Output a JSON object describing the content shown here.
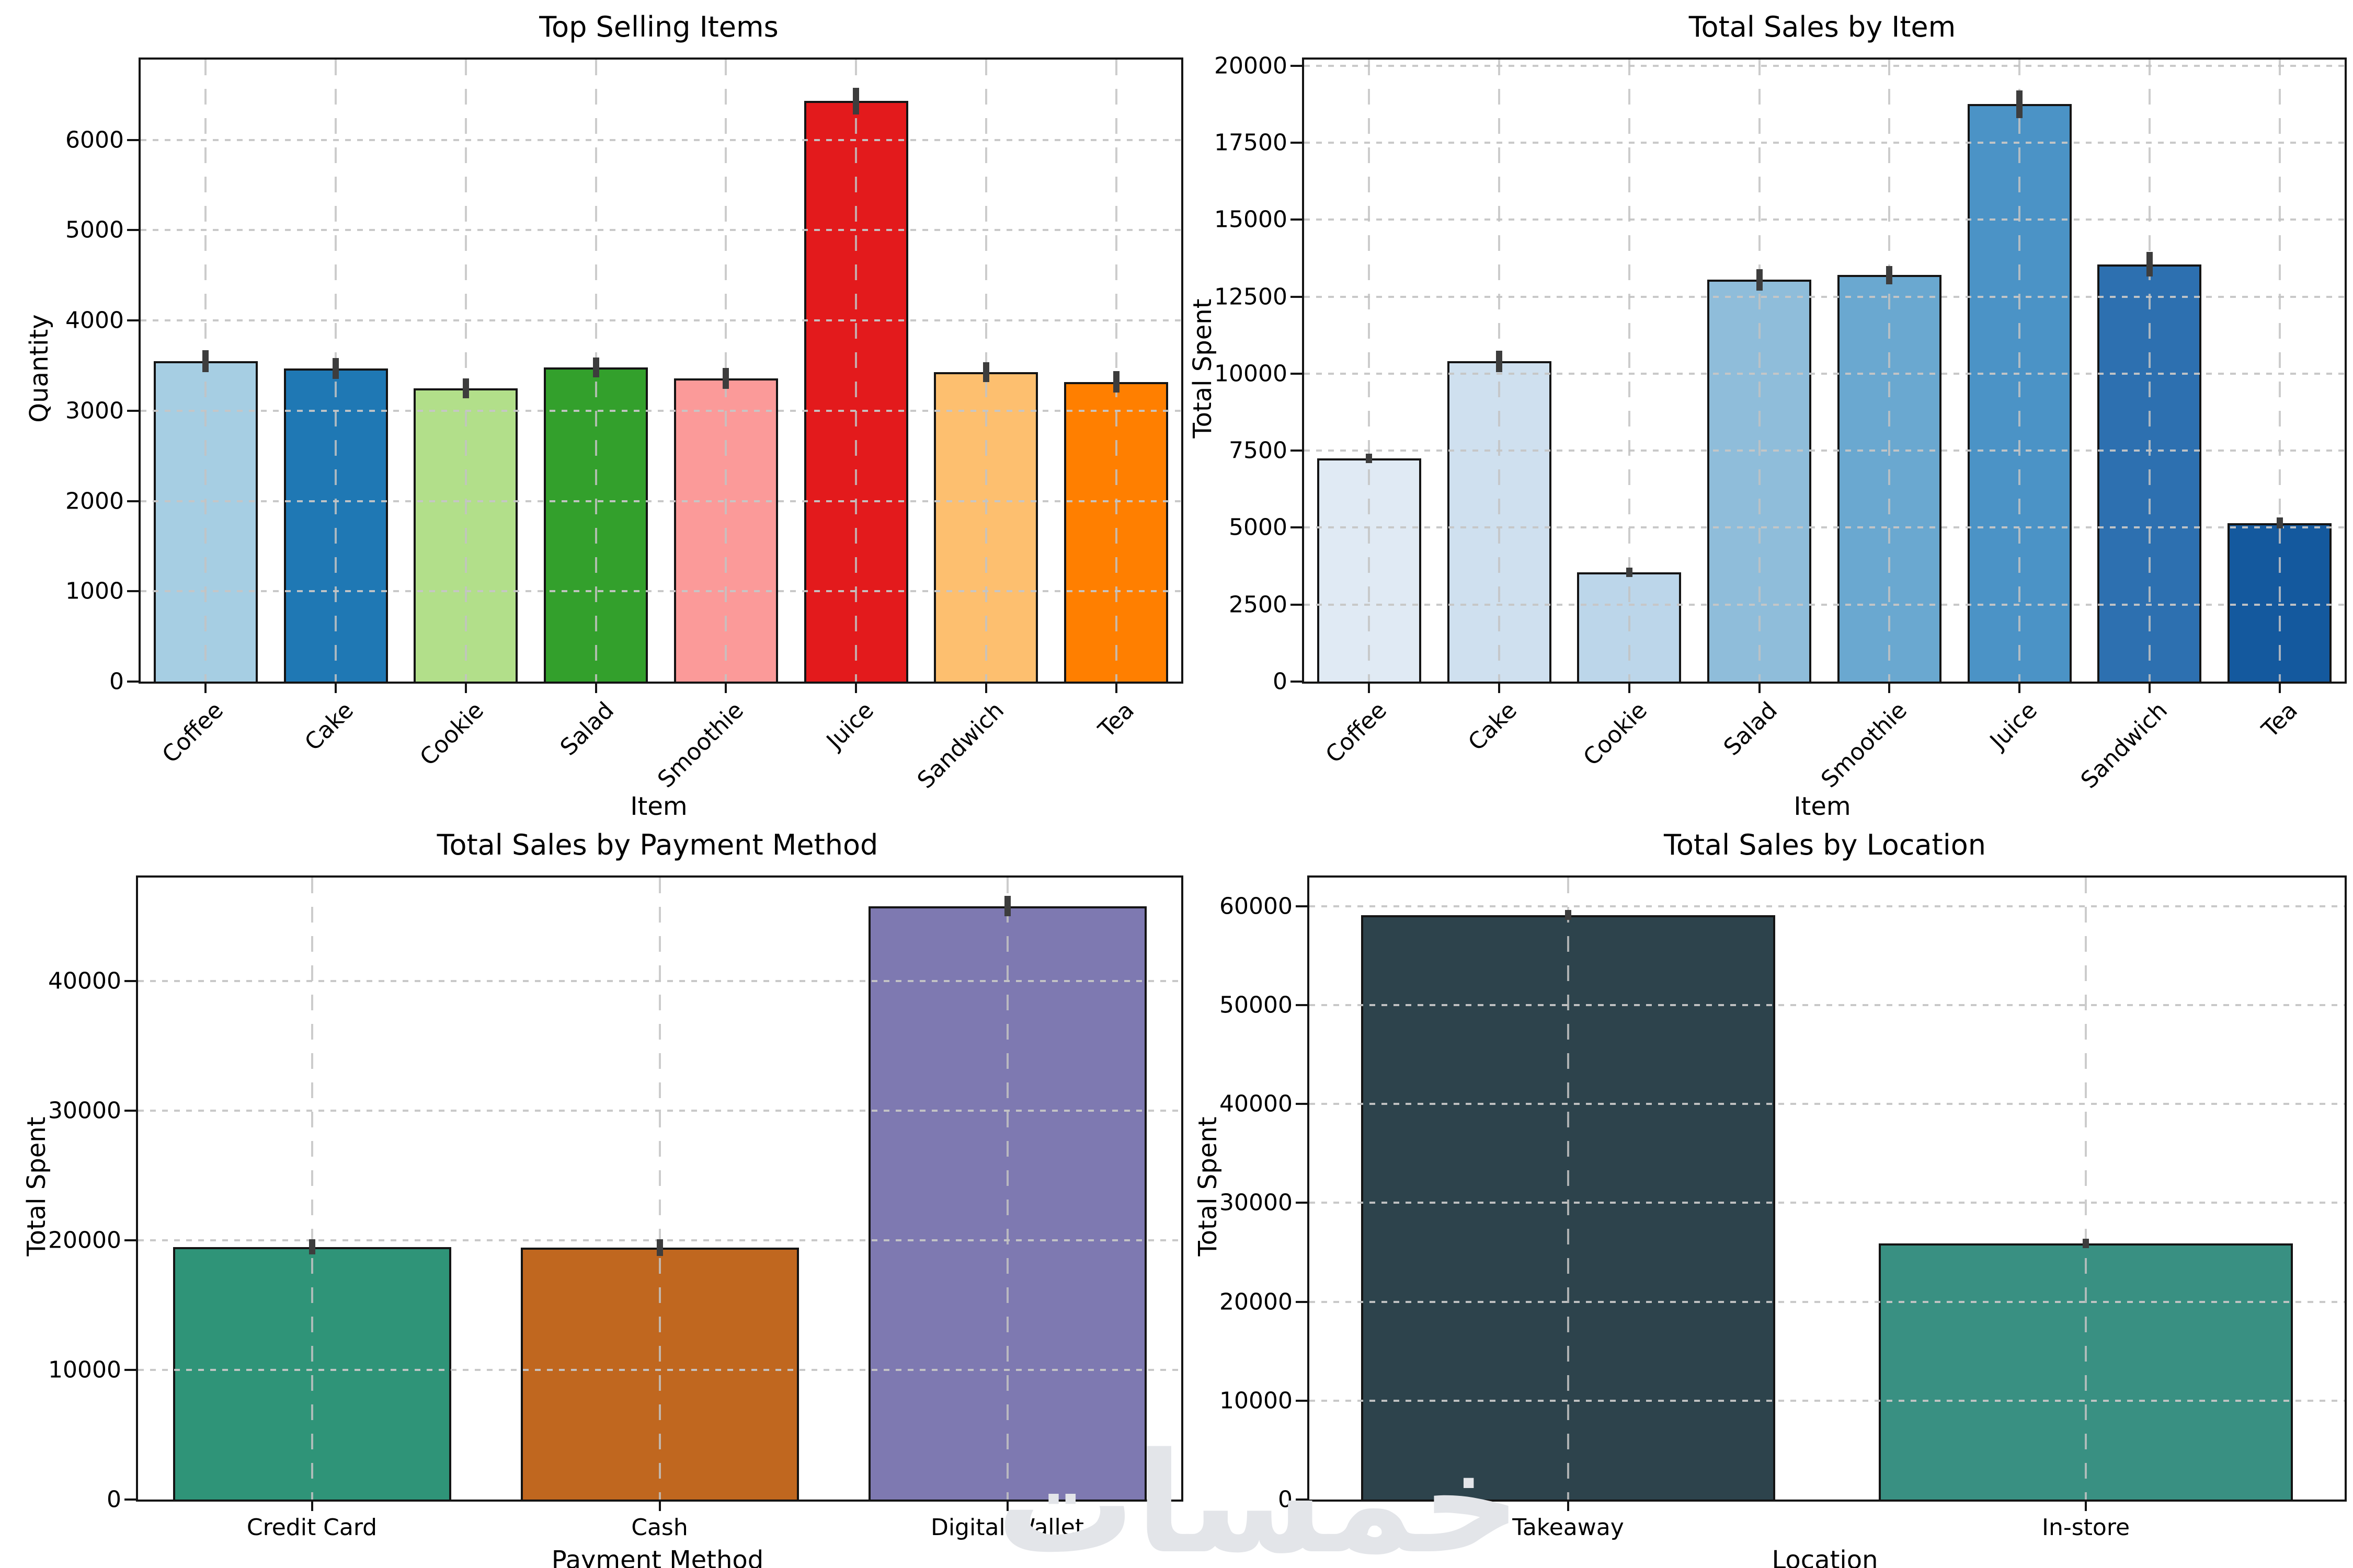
{
  "figure": {
    "background": "#ffffff",
    "spine_color": "#141414",
    "grid_color": "#c6c6c6",
    "errorbar_color": "#3d3d3d"
  },
  "watermark": {
    "text": "خمسات",
    "color": "#e3e5e9"
  },
  "chart_data": [
    {
      "type": "bar",
      "title": "Top Selling Items",
      "xlabel": "Item",
      "ylabel": "Quantity",
      "categories": [
        "Coffee",
        "Cake",
        "Cookie",
        "Salad",
        "Smoothie",
        "Juice",
        "Sandwich",
        "Tea"
      ],
      "values": [
        3550,
        3470,
        3250,
        3480,
        3360,
        6430,
        3430,
        3320
      ],
      "errors": [
        120,
        115,
        110,
        110,
        115,
        150,
        110,
        120
      ],
      "bar_colors": [
        "#a6cee3",
        "#1f78b4",
        "#b2df8a",
        "#33a02c",
        "#fb9a99",
        "#e31a1c",
        "#fdbf6f",
        "#ff7f00"
      ],
      "ylim": [
        0,
        6890
      ],
      "yticks": [
        0,
        1000,
        2000,
        3000,
        4000,
        5000,
        6000
      ],
      "grid": true,
      "legend": "none",
      "xtick_rotation": 45
    },
    {
      "type": "bar",
      "title": "Total Sales by Item",
      "xlabel": "Item",
      "ylabel": "Total Spent",
      "categories": [
        "Coffee",
        "Cake",
        "Cookie",
        "Salad",
        "Smoothie",
        "Juice",
        "Sandwich",
        "Tea"
      ],
      "values": [
        7250,
        10400,
        3550,
        13050,
        13200,
        18750,
        13550,
        5150
      ],
      "errors": [
        150,
        350,
        150,
        350,
        300,
        450,
        400,
        180
      ],
      "bar_colors": [
        "#e0eaf4",
        "#cfe0ef",
        "#bcd6ea",
        "#8fbdda",
        "#6aa8d0",
        "#4b93c6",
        "#2d70b0",
        "#14599e"
      ],
      "ylim": [
        0,
        20200
      ],
      "yticks": [
        0,
        2500,
        5000,
        7500,
        10000,
        12500,
        15000,
        17500,
        20000
      ],
      "grid": true,
      "legend": "none",
      "xtick_rotation": 45
    },
    {
      "type": "bar",
      "title": "Total Sales by Payment Method",
      "xlabel": "Payment Method",
      "ylabel": "Total Spent",
      "categories": [
        "Credit Card",
        "Cash",
        "Digital Wallet"
      ],
      "values": [
        19500,
        19450,
        45800
      ],
      "errors": [
        600,
        650,
        800
      ],
      "bar_colors": [
        "#2f9478",
        "#c0671f",
        "#7e79b1"
      ],
      "ylim": [
        0,
        48000
      ],
      "yticks": [
        0,
        10000,
        20000,
        30000,
        40000
      ],
      "grid": true,
      "legend": "none",
      "xtick_rotation": 0
    },
    {
      "type": "bar",
      "title": "Total Sales by Location",
      "xlabel": "Location",
      "ylabel": "Total Spent",
      "categories": [
        "Takeaway",
        "In-store"
      ],
      "values": [
        59100,
        25900
      ],
      "errors": [
        500,
        450
      ],
      "bar_colors": [
        "#2d434c",
        "#399082"
      ],
      "ylim": [
        0,
        62900
      ],
      "yticks": [
        0,
        10000,
        20000,
        30000,
        40000,
        50000,
        60000
      ],
      "grid": true,
      "legend": "none",
      "xtick_rotation": 0
    }
  ]
}
